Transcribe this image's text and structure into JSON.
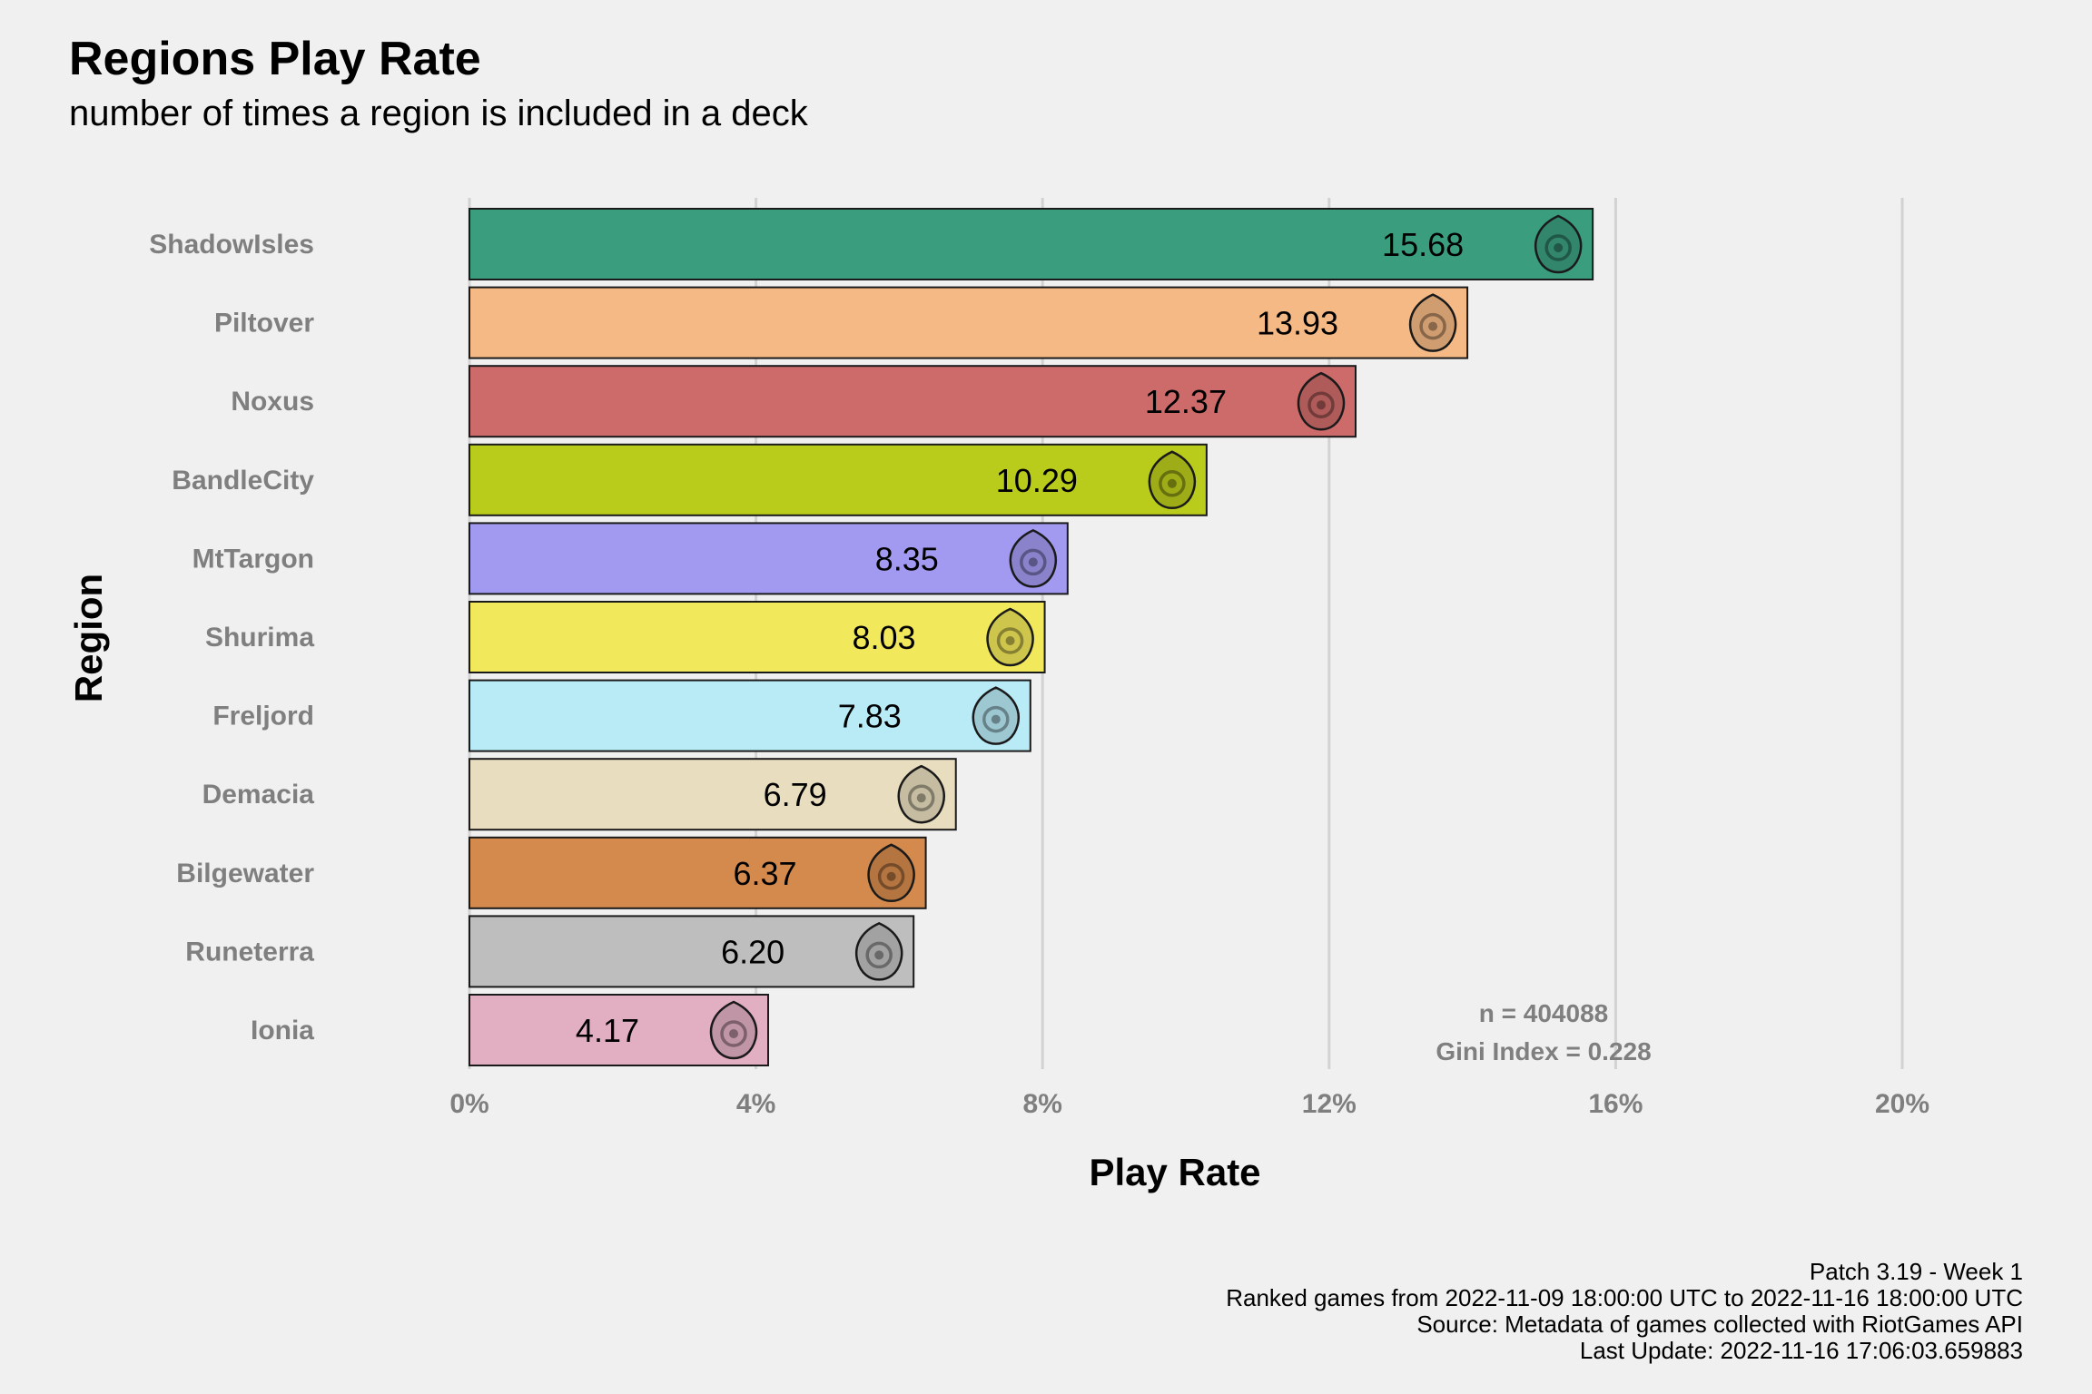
{
  "chart_data": {
    "type": "bar",
    "orientation": "horizontal",
    "title": "Regions Play Rate",
    "subtitle": "number of times a region is included in a deck",
    "xlabel": "Play Rate",
    "ylabel": "Region",
    "xlim": [
      0,
      20
    ],
    "xticks": [
      0,
      4,
      8,
      12,
      16,
      20
    ],
    "xtick_labels": [
      "0%",
      "4%",
      "8%",
      "12%",
      "16%",
      "20%"
    ],
    "grid": "vertical-major",
    "legend": "none",
    "categories": [
      "ShadowIsles",
      "Piltover",
      "Noxus",
      "BandleCity",
      "MtTargon",
      "Shurima",
      "Freljord",
      "Demacia",
      "Bilgewater",
      "Runeterra",
      "Ionia"
    ],
    "values": [
      15.68,
      13.93,
      12.37,
      10.29,
      8.35,
      8.03,
      7.83,
      6.79,
      6.37,
      6.2,
      4.17
    ],
    "value_labels": [
      "15.68",
      "13.93",
      "12.37",
      "10.29",
      "8.35",
      "8.03",
      "7.83",
      "6.79",
      "6.37",
      "6.20",
      "4.17"
    ],
    "colors": [
      "#3a9e7e",
      "#f5b985",
      "#cd6b6a",
      "#bacc1b",
      "#a29af0",
      "#f2e85b",
      "#b9ebf7",
      "#e8ddbf",
      "#d58a4d",
      "#bebebe",
      "#e2afc2"
    ],
    "icons": [
      "shadowisles-icon",
      "piltover-icon",
      "noxus-icon",
      "bandlecity-icon",
      "mttargon-icon",
      "shurima-icon",
      "freljord-icon",
      "demacia-icon",
      "bilgewater-icon",
      "runeterra-icon",
      "ionia-icon"
    ],
    "annotations": [
      "n = 404088",
      "Gini Index = 0.228"
    ]
  },
  "caption": {
    "line1": "Patch 3.19 - Week 1",
    "line2": "Ranked games from 2022-11-09 18:00:00 UTC to 2022-11-16 18:00:00 UTC",
    "line3": "Source: Metadata of games collected with RiotGames API",
    "line4": "Last Update: 2022-11-16 17:06:03.659883"
  }
}
